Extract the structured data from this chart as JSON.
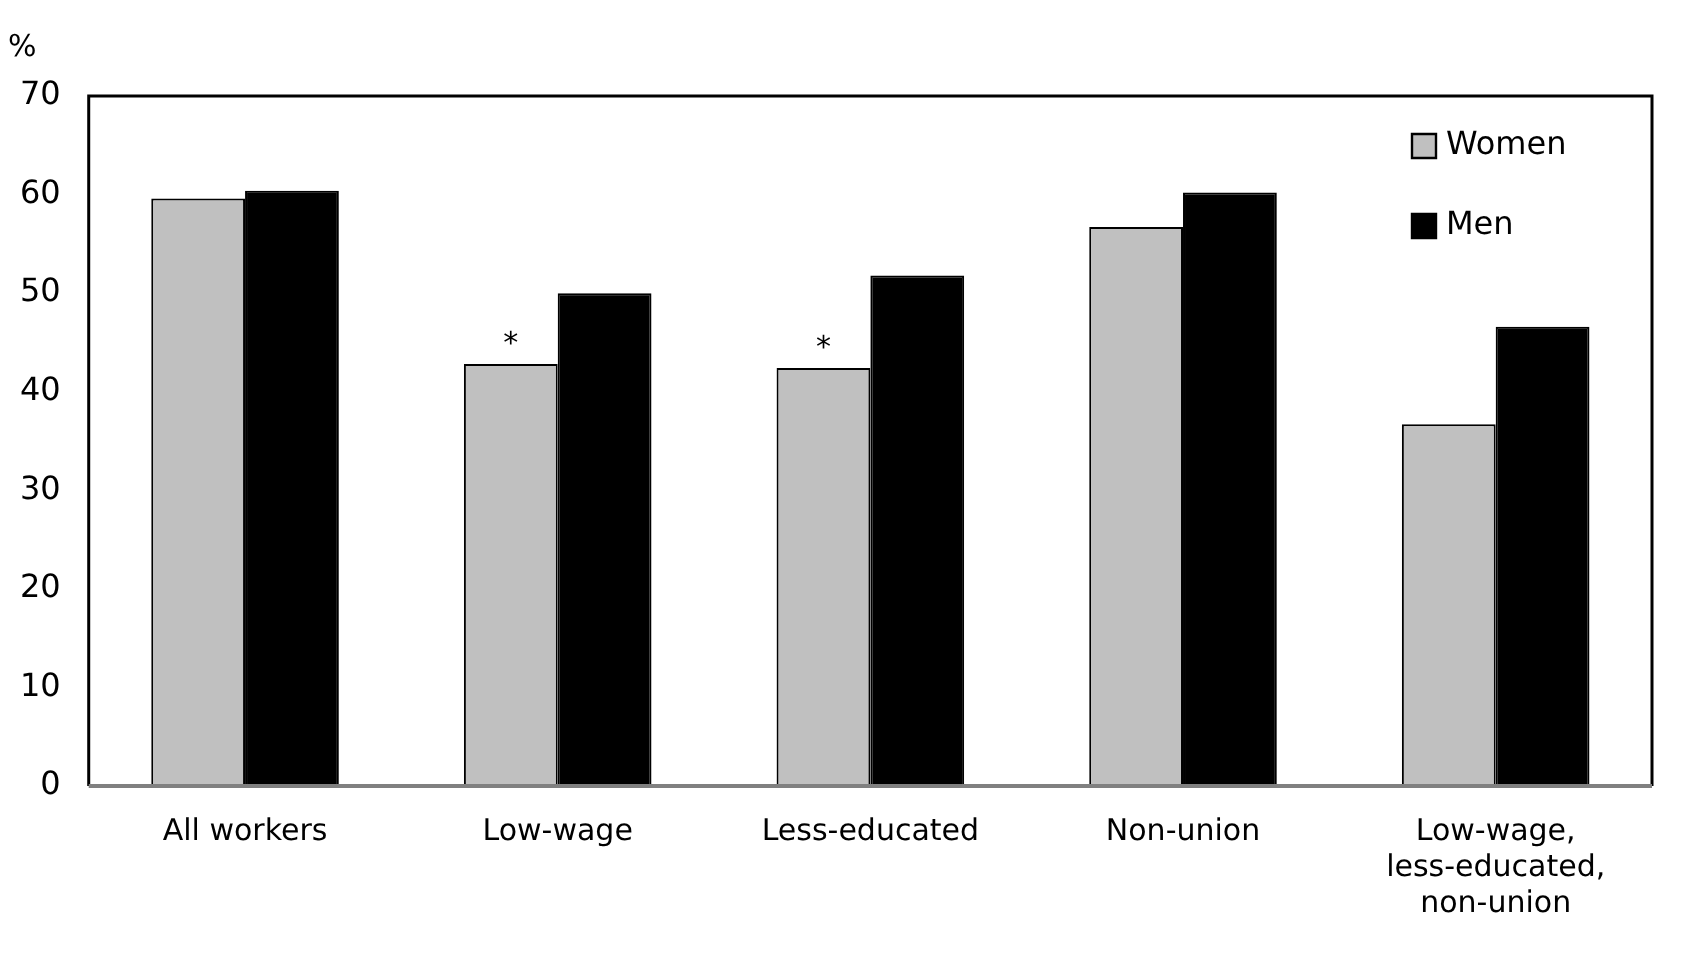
{
  "chart_data": {
    "type": "bar",
    "ylabel": "%",
    "categories": [
      "All workers",
      "Low-wage",
      "Less-educated",
      "Non-union",
      "Low-wage, less-educated, non-union"
    ],
    "series": [
      {
        "name": "Women",
        "color": "#c0c0c0",
        "values": [
          59.6,
          42.8,
          42.4,
          56.7,
          36.7
        ]
      },
      {
        "name": "Men",
        "color": "#000000",
        "values": [
          60.4,
          50.0,
          51.8,
          60.2,
          46.6
        ]
      }
    ],
    "ylim": [
      0,
      70
    ],
    "yticks": [
      0,
      10,
      20,
      30,
      40,
      50,
      60,
      70
    ],
    "grid": false,
    "legend": "top right",
    "annotations": [
      {
        "text": "*",
        "x": "Low-wage",
        "y": 42.8
      },
      {
        "text": "*",
        "x": "Less-educated",
        "y": 42.4
      }
    ]
  }
}
